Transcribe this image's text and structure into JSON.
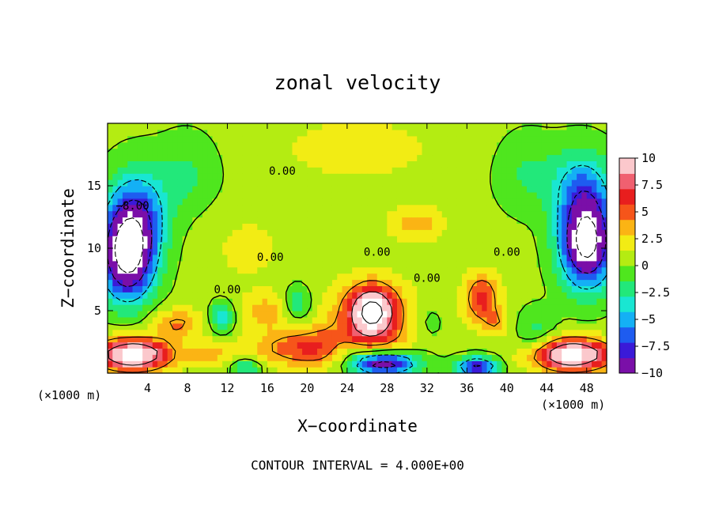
{
  "chart_data": {
    "type": "heatmap",
    "title": "zonal velocity",
    "xlabel": "X−coordinate",
    "ylabel": "Z−coordinate",
    "x_unit_left": "(×1000 m)",
    "x_unit_right": "(×1000 m)",
    "footer": "CONTOUR INTERVAL = 4.000E+00",
    "x_range": [
      0,
      50
    ],
    "y_range": [
      0,
      20
    ],
    "x_ticks": [
      4,
      8,
      12,
      16,
      20,
      24,
      28,
      32,
      36,
      40,
      44,
      48
    ],
    "x_tick_labels": [
      "4",
      "8",
      "12",
      "16",
      "20",
      "24",
      "28",
      "32",
      "36",
      "40",
      "44",
      "48"
    ],
    "y_ticks": [
      5,
      10,
      15
    ],
    "y_tick_labels": [
      "5",
      "10",
      "15"
    ],
    "colorbar": {
      "range": [
        -10,
        10
      ],
      "ticks": [
        10,
        7.5,
        5,
        2.5,
        0,
        -2.5,
        -5,
        -7.5,
        -10
      ],
      "tick_labels": [
        "10",
        "7.5",
        "5",
        "2.5",
        "0",
        "−2.5",
        "−5",
        "−7.5",
        "−10"
      ],
      "colors": [
        "#7a0fa8",
        "#3a1ad8",
        "#1e5cf0",
        "#14b0f5",
        "#19e6d2",
        "#22e87a",
        "#4fe61e",
        "#b4ec12",
        "#f2ec14",
        "#fbb414",
        "#f6551a",
        "#e81e1e",
        "#f06070",
        "#fbc8cc"
      ]
    },
    "contour_labels": [
      {
        "text": "0.00",
        "x": 17.5,
        "y": 15.9
      },
      {
        "text": "−8.00",
        "x": 2.5,
        "y": 13.1
      },
      {
        "text": "0.00",
        "x": 16.3,
        "y": 9.0
      },
      {
        "text": "0.00",
        "x": 27.0,
        "y": 9.4
      },
      {
        "text": "0.00",
        "x": 40.0,
        "y": 9.4
      },
      {
        "text": "0.00",
        "x": 12.0,
        "y": 6.4
      },
      {
        "text": "0.00",
        "x": 32.0,
        "y": 7.3
      }
    ],
    "features": [
      {
        "label": "core",
        "x": 26.5,
        "y": 5.0,
        "value": 10.0,
        "sx": 2.2,
        "sy": 1.9
      },
      {
        "label": "core",
        "x": 26.5,
        "y": 4.0,
        "value": 4.0,
        "sx": 5.5,
        "sy": 3.5
      },
      {
        "label": "core",
        "x": 37.5,
        "y": 6.0,
        "value": 6.0,
        "sx": 1.8,
        "sy": 2.0
      },
      {
        "label": "core",
        "x": 39.0,
        "y": 4.0,
        "value": 3.0,
        "sx": 1.2,
        "sy": 1.0
      },
      {
        "label": "core",
        "x": 31.0,
        "y": 12.0,
        "value": 3.0,
        "sx": 3.0,
        "sy": 1.5
      },
      {
        "label": "core",
        "x": 16.0,
        "y": 5.0,
        "value": 3.0,
        "sx": 3.0,
        "sy": 1.5
      },
      {
        "label": "core",
        "x": 7.0,
        "y": 4.0,
        "value": 4.0,
        "sx": 2.5,
        "sy": 1.2
      },
      {
        "label": "core",
        "x": 20.0,
        "y": 2.0,
        "value": 5.0,
        "sx": 6.0,
        "sy": 1.5
      },
      {
        "label": "core",
        "x": 10.0,
        "y": 1.5,
        "value": 3.0,
        "sx": 2.0,
        "sy": 1.0
      },
      {
        "label": "core",
        "x": 2.5,
        "y": 1.5,
        "value": 12.0,
        "sx": 3.8,
        "sy": 1.3
      },
      {
        "label": "core",
        "x": 46.5,
        "y": 1.5,
        "value": 12.0,
        "sx": 4.0,
        "sy": 1.3
      },
      {
        "label": "core",
        "x": 2.0,
        "y": 9.5,
        "value": -14.0,
        "sx": 2.6,
        "sy": 3.5
      },
      {
        "label": "core",
        "x": 3.0,
        "y": 13.0,
        "value": -6.0,
        "sx": 3.0,
        "sy": 3.5
      },
      {
        "label": "core",
        "x": 48.0,
        "y": 10.5,
        "value": -14.0,
        "sx": 2.6,
        "sy": 3.5
      },
      {
        "label": "core",
        "x": 47.5,
        "y": 15.0,
        "value": -5.0,
        "sx": 3.0,
        "sy": 3.0
      },
      {
        "label": "core",
        "x": 27.5,
        "y": 0.8,
        "value": -12.0,
        "sx": 3.5,
        "sy": 1.0
      },
      {
        "label": "core",
        "x": 37.0,
        "y": 0.5,
        "value": -9.0,
        "sx": 2.0,
        "sy": 0.8
      },
      {
        "label": "core",
        "x": 14.0,
        "y": 0.5,
        "value": -4.0,
        "sx": 1.5,
        "sy": 0.7
      },
      {
        "label": "core",
        "x": 11.5,
        "y": 4.5,
        "value": -5.0,
        "sx": 1.2,
        "sy": 1.2
      },
      {
        "label": "core",
        "x": 19.0,
        "y": 5.5,
        "value": -4.0,
        "sx": 1.5,
        "sy": 1.5
      },
      {
        "label": "core",
        "x": 24.0,
        "y": 2.0,
        "value": -3.0,
        "sx": 2.0,
        "sy": 0.8
      },
      {
        "label": "core",
        "x": 32.0,
        "y": 4.0,
        "value": -2.0,
        "sx": 2.0,
        "sy": 2.0
      },
      {
        "label": "core",
        "x": 43.0,
        "y": 3.0,
        "value": -2.5,
        "sx": 2.0,
        "sy": 2.0
      },
      {
        "label": "core",
        "x": 8.0,
        "y": 16.0,
        "value": -2.0,
        "sx": 3.0,
        "sy": 3.0
      },
      {
        "label": "core",
        "x": 42.0,
        "y": 16.0,
        "value": -2.0,
        "sx": 3.0,
        "sy": 3.0
      },
      {
        "label": "core",
        "x": 25.0,
        "y": 18.0,
        "value": 2.0,
        "sx": 8.0,
        "sy": 2.5
      },
      {
        "label": "core",
        "x": 14.0,
        "y": 10.0,
        "value": 1.5,
        "sx": 4.0,
        "sy": 3.0
      }
    ]
  }
}
